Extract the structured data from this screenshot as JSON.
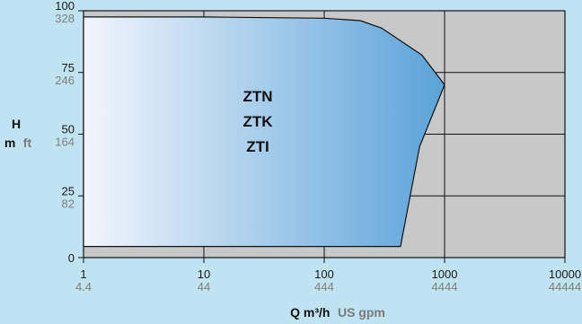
{
  "chart_data": {
    "type": "area",
    "title": "",
    "x_scale": "log",
    "xlim": [
      1,
      10000
    ],
    "ylim": [
      0,
      100
    ],
    "grid": true,
    "x_ticks": [
      {
        "value": 1,
        "label": "1",
        "secondary": "4.4"
      },
      {
        "value": 10,
        "label": "10",
        "secondary": "44"
      },
      {
        "value": 100,
        "label": "100",
        "secondary": "444"
      },
      {
        "value": 1000,
        "label": "1000",
        "secondary": "4444"
      },
      {
        "value": 10000,
        "label": "10000",
        "secondary": "44444"
      }
    ],
    "y_ticks": [
      {
        "value": 100,
        "label": "100",
        "secondary": "328"
      },
      {
        "value": 75,
        "label": "75",
        "secondary": "246"
      },
      {
        "value": 50,
        "label": "50",
        "secondary": "164"
      },
      {
        "value": 25,
        "label": "25",
        "secondary": "82"
      },
      {
        "value": 0,
        "label": "0",
        "secondary": ""
      }
    ],
    "xlabel": {
      "primary": "Q  m³/h",
      "secondary": "US gpm"
    },
    "ylabel": {
      "line1": "H",
      "line2_primary": "m",
      "line2_secondary": "ft"
    },
    "series_labels": [
      "ZTN",
      "ZTK",
      "ZTI"
    ],
    "region": {
      "points": [
        [
          1,
          4.5
        ],
        [
          430,
          4.5
        ],
        [
          620,
          45
        ],
        [
          1000,
          70
        ],
        [
          650,
          82
        ],
        [
          300,
          93
        ],
        [
          200,
          96
        ],
        [
          100,
          97
        ],
        [
          10,
          97.5
        ],
        [
          1,
          97.5
        ]
      ]
    },
    "colors": {
      "plot_bg": "#c8c8c8",
      "fill_start": "#f2f6fc",
      "fill_end": "#5aa3d9",
      "page_bg": "#bfe3f1"
    }
  }
}
